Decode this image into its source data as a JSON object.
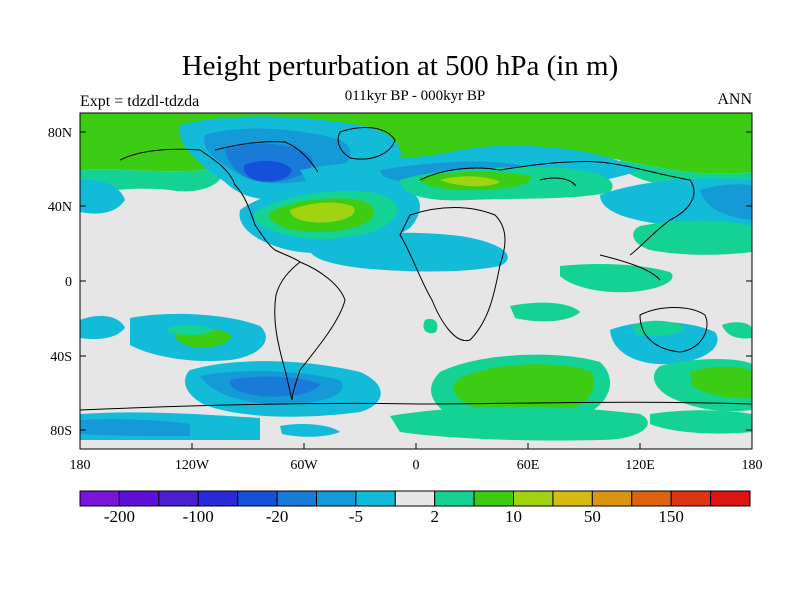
{
  "title": "Height perturbation at 500 hPa (in m)",
  "subtitle": "011kyr BP - 000kyr BP",
  "experiment": "Expt = tdzdl-tdzda",
  "season": "ANN",
  "map": {
    "projection": "cylindrical-equidistant",
    "lon_range": [
      -180,
      180
    ],
    "lat_range": [
      -90,
      90
    ],
    "x_ticks": [
      "180",
      "120W",
      "60W",
      "0",
      "60E",
      "120E",
      "180"
    ],
    "y_ticks": [
      "80N",
      "40N",
      "0",
      "40S",
      "80S"
    ],
    "background_color": "#e6e6e6"
  },
  "colorbar": {
    "colors": [
      "#7a14d6",
      "#5f10d8",
      "#4a20d0",
      "#2a2ad8",
      "#1450d8",
      "#1a7ad8",
      "#149ad6",
      "#12bcd8",
      "#e6e6e6",
      "#14d294",
      "#3ccc14",
      "#a0d410",
      "#d4bc10",
      "#da9410",
      "#dc6410",
      "#dc3414",
      "#dc1414"
    ],
    "labels": [
      "-200",
      "-100",
      "-20",
      "-5",
      "2",
      "10",
      "50",
      "150"
    ]
  }
}
